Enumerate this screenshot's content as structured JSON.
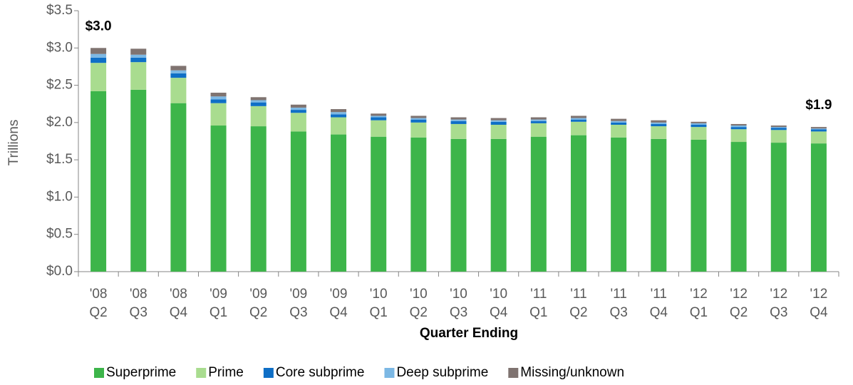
{
  "chart_data": {
    "type": "stacked_bar",
    "y_label": "Trillions",
    "x_label": "Quarter Ending",
    "categories": [
      [
        "'08",
        "Q2"
      ],
      [
        "'08",
        "Q3"
      ],
      [
        "'08",
        "Q4"
      ],
      [
        "'09",
        "Q1"
      ],
      [
        "'09",
        "Q2"
      ],
      [
        "'09",
        "Q3"
      ],
      [
        "'09",
        "Q4"
      ],
      [
        "'10",
        "Q1"
      ],
      [
        "'10",
        "Q2"
      ],
      [
        "'10",
        "Q3"
      ],
      [
        "'10",
        "Q4"
      ],
      [
        "'11",
        "Q1"
      ],
      [
        "'11",
        "Q2"
      ],
      [
        "'11",
        "Q3"
      ],
      [
        "'11",
        "Q4"
      ],
      [
        "'12",
        "Q1"
      ],
      [
        "'12",
        "Q2"
      ],
      [
        "'12",
        "Q3"
      ],
      [
        "'12",
        "Q4"
      ]
    ],
    "series": [
      {
        "name": "Superprime",
        "color": "#3db54a",
        "values": [
          2.42,
          2.44,
          2.26,
          1.96,
          1.95,
          1.88,
          1.84,
          1.81,
          1.8,
          1.78,
          1.78,
          1.81,
          1.83,
          1.8,
          1.78,
          1.77,
          1.74,
          1.73,
          1.72
        ]
      },
      {
        "name": "Prime",
        "color": "#a9dc8f",
        "values": [
          0.38,
          0.37,
          0.34,
          0.3,
          0.27,
          0.25,
          0.23,
          0.22,
          0.2,
          0.2,
          0.19,
          0.18,
          0.18,
          0.17,
          0.17,
          0.17,
          0.17,
          0.17,
          0.16
        ]
      },
      {
        "name": "Core subprime",
        "color": "#0f6fc6",
        "values": [
          0.07,
          0.06,
          0.06,
          0.05,
          0.05,
          0.04,
          0.04,
          0.04,
          0.04,
          0.04,
          0.04,
          0.03,
          0.03,
          0.03,
          0.03,
          0.03,
          0.03,
          0.03,
          0.03
        ]
      },
      {
        "name": "Deep subprime",
        "color": "#7cb8e4",
        "values": [
          0.05,
          0.04,
          0.04,
          0.04,
          0.03,
          0.03,
          0.03,
          0.02,
          0.02,
          0.02,
          0.02,
          0.02,
          0.02,
          0.02,
          0.02,
          0.02,
          0.02,
          0.01,
          0.01
        ]
      },
      {
        "name": "Missing/unknown",
        "color": "#7f7370",
        "values": [
          0.08,
          0.08,
          0.06,
          0.05,
          0.04,
          0.04,
          0.04,
          0.03,
          0.03,
          0.03,
          0.03,
          0.03,
          0.03,
          0.03,
          0.03,
          0.02,
          0.02,
          0.02,
          0.02
        ]
      }
    ],
    "annotations": [
      {
        "text": "$3.0",
        "value": 3.0,
        "at": [
          "'08",
          "Q2"
        ]
      },
      {
        "text": "$1.9",
        "value": 1.94,
        "at": [
          "'12",
          "Q4"
        ]
      }
    ],
    "ylim": [
      0,
      3.5
    ],
    "yticks": [
      {
        "value": 0,
        "label": "$0.0"
      },
      {
        "value": 0.5,
        "label": "$0.5"
      },
      {
        "value": 1,
        "label": "$1.0"
      },
      {
        "value": 1.5,
        "label": "$1.5"
      },
      {
        "value": 2,
        "label": "$2.0"
      },
      {
        "value": 2.5,
        "label": "$2.5"
      },
      {
        "value": 3,
        "label": "$3.0"
      },
      {
        "value": 3.5,
        "label": "$3.5"
      }
    ],
    "legend": "bottom"
  }
}
